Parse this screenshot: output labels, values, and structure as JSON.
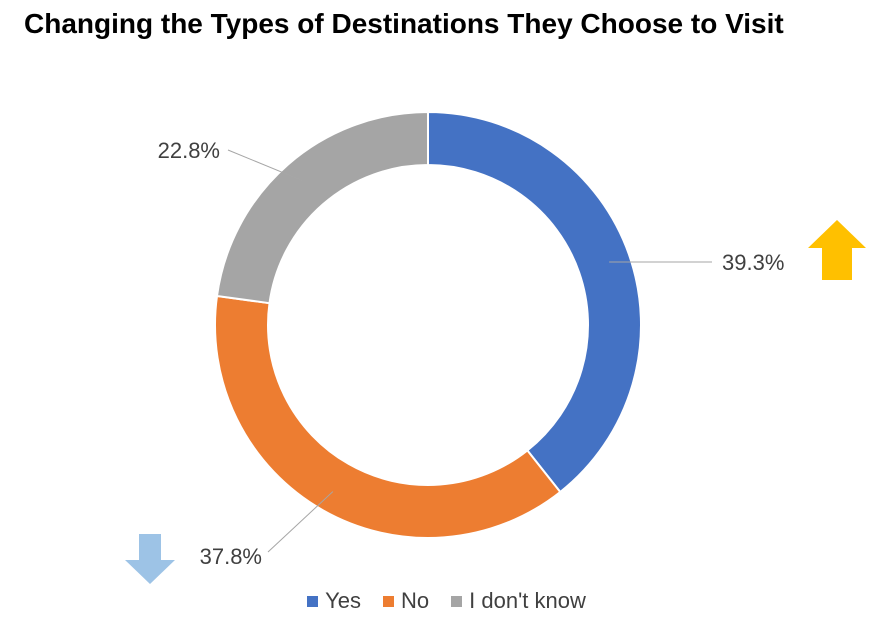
{
  "chart_data": {
    "type": "pie",
    "variant": "donut",
    "title": "Changing the Types of Destinations They Choose to Visit",
    "categories": [
      "Yes",
      "No",
      "I don't know"
    ],
    "values": [
      39.3,
      37.8,
      22.8
    ],
    "labels": [
      "39.3%",
      "37.8%",
      "22.8%"
    ],
    "colors": [
      "#4472C4",
      "#ED7D31",
      "#A5A5A5"
    ],
    "legend": "bottom",
    "indicators": [
      {
        "icon": "arrow-up-icon",
        "color": "#FFC000",
        "attached_to": "Yes"
      },
      {
        "icon": "arrow-down-icon",
        "color": "#9DC3E6",
        "attached_to": "No"
      }
    ]
  }
}
